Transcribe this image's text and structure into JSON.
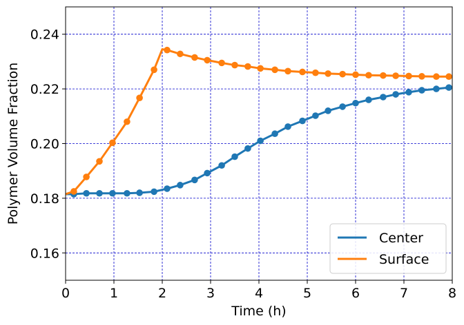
{
  "chart_data": {
    "type": "line",
    "title": "",
    "xlabel": "Time (h)",
    "ylabel": "Polymer Volume Fraction",
    "xlim": [
      0,
      8
    ],
    "ylim": [
      0.15,
      0.25
    ],
    "xticks": [
      0,
      1,
      2,
      3,
      4,
      5,
      6,
      7,
      8
    ],
    "xtick_labels": [
      "0",
      "1",
      "2",
      "3",
      "4",
      "5",
      "6",
      "7",
      "8"
    ],
    "yticks": [
      0.16,
      0.18,
      0.2,
      0.22,
      0.24
    ],
    "ytick_labels": [
      "0.16",
      "0.18",
      "0.20",
      "0.22",
      "0.24"
    ],
    "grid": true,
    "grid_color": "#0000cc",
    "legend_position": "lower right",
    "series": [
      {
        "name": "Center",
        "color": "#1f77b4",
        "x": [
          0.17,
          0.43,
          0.7,
          0.97,
          1.27,
          1.53,
          1.83,
          2.1,
          2.37,
          2.67,
          2.93,
          3.23,
          3.5,
          3.77,
          4.03,
          4.33,
          4.6,
          4.9,
          5.17,
          5.43,
          5.73,
          6.0,
          6.27,
          6.57,
          6.83,
          7.1,
          7.37,
          7.67,
          7.93
        ],
        "y": [
          0.1815,
          0.1818,
          0.1818,
          0.1818,
          0.1818,
          0.182,
          0.1824,
          0.1835,
          0.1848,
          0.1867,
          0.1892,
          0.192,
          0.1952,
          0.1982,
          0.201,
          0.2036,
          0.2062,
          0.2083,
          0.2102,
          0.212,
          0.2135,
          0.2148,
          0.216,
          0.217,
          0.218,
          0.2188,
          0.2195,
          0.22,
          0.2205
        ]
      },
      {
        "name": "Surface",
        "color": "#ff7f0e",
        "x": [
          0.17,
          0.43,
          0.7,
          0.97,
          1.27,
          1.53,
          1.83,
          2.1,
          2.37,
          2.67,
          2.93,
          3.23,
          3.5,
          3.77,
          4.03,
          4.33,
          4.6,
          4.9,
          5.17,
          5.43,
          5.73,
          6.0,
          6.27,
          6.57,
          6.83,
          7.1,
          7.37,
          7.67,
          7.93
        ],
        "y": [
          0.1825,
          0.1878,
          0.1935,
          0.2003,
          0.208,
          0.2167,
          0.227,
          0.2342,
          0.2328,
          0.2315,
          0.2305,
          0.2295,
          0.2287,
          0.2282,
          0.2275,
          0.227,
          0.2265,
          0.2262,
          0.2259,
          0.2256,
          0.2254,
          0.2252,
          0.225,
          0.2249,
          0.2248,
          0.2247,
          0.2246,
          0.2245,
          0.2245
        ]
      }
    ],
    "line_extensions": {
      "Center": {
        "start": [
          0.0,
          0.1815
        ],
        "end": [
          8.0,
          0.2207
        ]
      },
      "Surface": {
        "start": [
          0.0,
          0.1815
        ],
        "end": [
          8.0,
          0.2244
        ],
        "peak": [
          2.0,
          0.2345
        ]
      }
    }
  }
}
